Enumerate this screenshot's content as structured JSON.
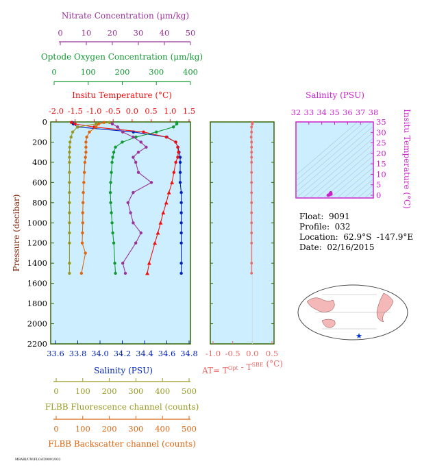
{
  "colors": {
    "nitrate": "#993399",
    "oxygen": "#119933",
    "temperature": "#ee1111",
    "salinity": "#0022bb",
    "fluorescence": "#999922",
    "backscatter": "#dd6611",
    "at": "#ee6666",
    "ts_axis": "#cc22cc",
    "plot_bg": "#cceeff",
    "frame": "#336600"
  },
  "axes": {
    "nitrate": {
      "label": "Nitrate Concentration (μm/kg)",
      "ticks": [
        "0",
        "10",
        "20",
        "30",
        "40",
        "50"
      ]
    },
    "oxygen": {
      "label": "Optode Oxygen Concentration (μm/kg)",
      "ticks": [
        "0",
        "100",
        "200",
        "300",
        "400"
      ]
    },
    "temperature": {
      "label": "Insitu Temperature (°C)",
      "ticks": [
        "-2.0",
        "-1.5",
        "-1.0",
        "-0.5",
        "0.0",
        "0.5",
        "1.0",
        "1.5"
      ]
    },
    "pressure": {
      "label": "Pressure (decibar)",
      "ticks": [
        "0",
        "200",
        "400",
        "600",
        "800",
        "1000",
        "1200",
        "1400",
        "1600",
        "1800",
        "2000",
        "2200"
      ]
    },
    "salinity": {
      "label": "Salinity (PSU)",
      "ticks": [
        "33.6",
        "33.8",
        "34.0",
        "34.2",
        "34.4",
        "34.6",
        "34.8"
      ]
    },
    "fluorescence": {
      "label": "FLBB Fluorescence channel (counts)",
      "ticks": [
        "0",
        "100",
        "200",
        "300",
        "400",
        "500"
      ]
    },
    "backscatter": {
      "label": "FLBB Backscatter channel (counts)",
      "ticks": [
        "0",
        "100",
        "200",
        "300",
        "400",
        "500"
      ]
    },
    "at": {
      "label_main": "AT= T",
      "label_sup1": "Opt",
      "label_mid": " - T",
      "label_sup2": "SBE",
      "label_unit": " (°C)",
      "ticks": [
        "-1.0",
        "-0.5",
        "0.0",
        "0.5"
      ]
    },
    "ts_salinity": {
      "label": "Salinity (PSU)",
      "ticks": [
        "32",
        "33",
        "34",
        "35",
        "36",
        "37",
        "38"
      ]
    },
    "ts_temperature": {
      "label": "Insitu Temperature (°C)",
      "ticks": [
        "0",
        "5",
        "10",
        "15",
        "20",
        "25",
        "30",
        "35"
      ]
    }
  },
  "info": {
    "float": "Float:  9091",
    "profile": "Profile:  032",
    "location": "Location:  62.9°S  -147.9°E",
    "date": "Date:  02/16/2015"
  },
  "footer_code": "MBARI/UW/FLOAT/9091/032",
  "chart_data": [
    {
      "type": "line",
      "name": "profiles",
      "y_axis": "pressure (decibar)",
      "ylim": [
        2200,
        0
      ],
      "series": [
        {
          "name": "Salinity",
          "units": "PSU",
          "xlim": [
            33.6,
            34.8
          ],
          "x": [
            33.75,
            33.76,
            33.8,
            34.3,
            34.6,
            34.68,
            34.7,
            34.71,
            34.72,
            34.72,
            34.72,
            34.72,
            34.73,
            34.73,
            34.73,
            34.73,
            34.73,
            34.73,
            34.73,
            34.73
          ],
          "y": [
            5,
            20,
            50,
            100,
            150,
            200,
            250,
            300,
            350,
            400,
            500,
            600,
            700,
            800,
            900,
            1000,
            1100,
            1200,
            1400,
            1500
          ]
        },
        {
          "name": "Temperature",
          "units": "°C",
          "xlim": [
            -2.0,
            1.5
          ],
          "x": [
            -1.6,
            -1.5,
            -1.0,
            0.3,
            0.9,
            1.15,
            1.2,
            1.22,
            1.2,
            1.15,
            1.1,
            1.05,
            0.97,
            0.9,
            0.82,
            0.75,
            0.68,
            0.6,
            0.45,
            0.4
          ],
          "y": [
            5,
            20,
            50,
            100,
            150,
            200,
            250,
            300,
            350,
            400,
            500,
            600,
            700,
            800,
            900,
            1000,
            1100,
            1200,
            1400,
            1500
          ]
        },
        {
          "name": "Oxygen",
          "units": "μm/kg",
          "xlim": [
            0,
            400
          ],
          "x": [
            360,
            360,
            350,
            300,
            240,
            200,
            180,
            175,
            172,
            170,
            168,
            166,
            165,
            166,
            168,
            170,
            172,
            175,
            178,
            180
          ],
          "y": [
            5,
            20,
            50,
            100,
            150,
            200,
            250,
            300,
            350,
            400,
            500,
            600,
            700,
            800,
            900,
            1000,
            1100,
            1200,
            1400,
            1500
          ]
        },
        {
          "name": "Nitrate",
          "units": "μm/kg",
          "xlim": [
            0,
            50
          ],
          "x": [
            19,
            20,
            22,
            24,
            28,
            31,
            33,
            30,
            28,
            29,
            30,
            35,
            28,
            26,
            27,
            28,
            31,
            29,
            24,
            25
          ],
          "y": [
            5,
            20,
            50,
            100,
            150,
            200,
            250,
            300,
            350,
            400,
            500,
            600,
            700,
            800,
            900,
            1000,
            1100,
            1200,
            1400,
            1500
          ]
        },
        {
          "name": "Fluorescence",
          "units": "counts",
          "xlim": [
            0,
            500
          ],
          "x": [
            200,
            150,
            80,
            62,
            56,
            52,
            51,
            50,
            50,
            50,
            50,
            50,
            50,
            50,
            50,
            50,
            50,
            50,
            50,
            50
          ],
          "y": [
            5,
            20,
            50,
            100,
            150,
            200,
            250,
            300,
            350,
            400,
            500,
            600,
            700,
            800,
            900,
            1000,
            1100,
            1200,
            1400,
            1500
          ]
        },
        {
          "name": "Backscatter",
          "units": "counts",
          "xlim": [
            0,
            500
          ],
          "x": [
            180,
            160,
            150,
            125,
            115,
            112,
            112,
            112,
            110,
            108,
            106,
            104,
            102,
            101,
            100,
            100,
            99,
            98,
            110,
            95
          ],
          "y": [
            5,
            20,
            50,
            100,
            150,
            200,
            250,
            300,
            350,
            400,
            500,
            600,
            700,
            800,
            900,
            1000,
            1100,
            1200,
            1300,
            1500
          ]
        }
      ]
    },
    {
      "type": "line",
      "name": "AT",
      "xlim": [
        -1.0,
        0.5
      ],
      "ylim": [
        2200,
        0
      ],
      "x": [
        0.0,
        0.0,
        -0.02,
        -0.02,
        -0.03,
        -0.02,
        -0.02,
        -0.02,
        -0.02,
        -0.02,
        -0.02,
        -0.02,
        -0.02,
        -0.02,
        -0.02,
        -0.02,
        -0.02,
        -0.02,
        -0.02,
        -0.02
      ],
      "y": [
        5,
        20,
        50,
        100,
        150,
        200,
        250,
        300,
        350,
        400,
        500,
        600,
        700,
        800,
        900,
        1000,
        1100,
        1200,
        1400,
        1500
      ]
    },
    {
      "type": "scatter",
      "name": "TS diagram",
      "xlim": [
        32,
        38
      ],
      "ylim": [
        0,
        35
      ],
      "x": [
        34.5,
        34.6,
        34.65,
        34.7,
        34.72
      ],
      "y": [
        0.0,
        0.2,
        0.8,
        1.2,
        0.5
      ]
    }
  ]
}
